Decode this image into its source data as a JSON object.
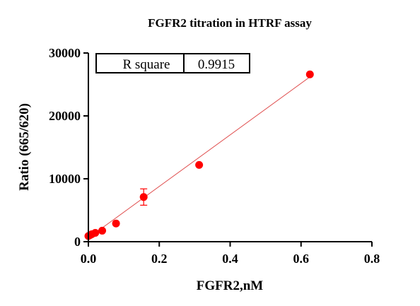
{
  "chart_data": {
    "type": "scatter",
    "title": "FGFR2 titration in HTRF assay",
    "xlabel": "FGFR2,nM",
    "ylabel": "Ratio (665/620)",
    "xlim": [
      0,
      0.8
    ],
    "ylim": [
      0,
      30000
    ],
    "x_ticks": [
      "0.0",
      "0.2",
      "0.4",
      "0.6",
      "0.8"
    ],
    "y_ticks": [
      "0",
      "10000",
      "20000",
      "30000"
    ],
    "x_tick_values": [
      0,
      0.2,
      0.4,
      0.6,
      0.8
    ],
    "y_tick_values": [
      0,
      10000,
      20000,
      30000
    ],
    "points": [
      {
        "x": 0.0,
        "y": 900
      },
      {
        "x": 0.0049,
        "y": 1050
      },
      {
        "x": 0.0098,
        "y": 1200
      },
      {
        "x": 0.0195,
        "y": 1400
      },
      {
        "x": 0.039,
        "y": 1750
      },
      {
        "x": 0.078,
        "y": 2900
      },
      {
        "x": 0.156,
        "y": 7100,
        "err": 1300
      },
      {
        "x": 0.3125,
        "y": 12200
      },
      {
        "x": 0.625,
        "y": 26600
      }
    ],
    "fit_line": {
      "x": [
        0.0,
        0.625
      ],
      "y": [
        600,
        26200
      ]
    },
    "stats_table": {
      "label": "R square",
      "value": "0.9915"
    },
    "colors": {
      "points": "#ff0000",
      "fit": "#e05050",
      "axis": "#000000"
    }
  }
}
